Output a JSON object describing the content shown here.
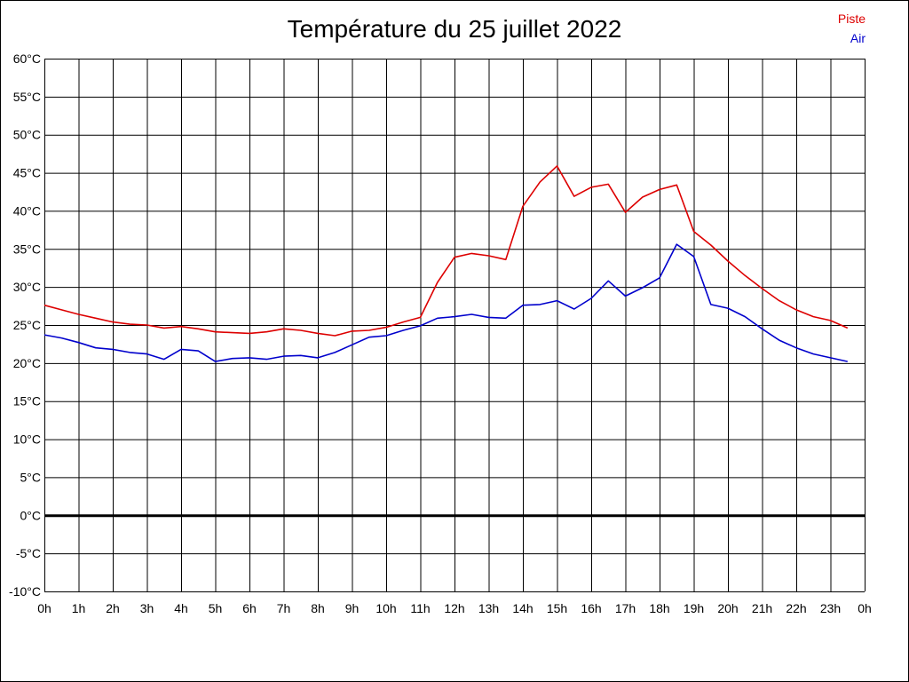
{
  "chart_data": {
    "type": "line",
    "title": "Température du 25 juillet 2022",
    "xlabel": "",
    "ylabel": "",
    "x_tick_labels": [
      "0h",
      "1h",
      "2h",
      "3h",
      "4h",
      "5h",
      "6h",
      "7h",
      "8h",
      "9h",
      "10h",
      "11h",
      "12h",
      "13h",
      "14h",
      "15h",
      "16h",
      "17h",
      "18h",
      "19h",
      "20h",
      "21h",
      "22h",
      "23h",
      "0h"
    ],
    "y_tick_labels": [
      "60°C",
      "55°C",
      "50°C",
      "45°C",
      "40°C",
      "35°C",
      "30°C",
      "25°C",
      "20°C",
      "15°C",
      "10°C",
      "5°C",
      "0°C",
      "-5°C",
      "-10°C"
    ],
    "xlim": [
      0,
      24
    ],
    "ylim": [
      -10,
      60
    ],
    "grid": true,
    "legend_position": "top-right",
    "x": [
      0,
      0.5,
      1,
      1.5,
      2,
      2.5,
      3,
      3.5,
      4,
      4.5,
      5,
      5.5,
      6,
      6.5,
      7,
      7.5,
      8,
      8.5,
      9,
      9.5,
      10,
      10.5,
      11,
      11.5,
      12,
      12.5,
      13,
      13.5,
      14,
      14.5,
      15,
      15.5,
      16,
      16.5,
      17,
      17.5,
      18,
      18.5,
      19,
      19.5,
      20,
      20.5,
      21,
      21.5,
      22,
      22.5,
      23,
      23.5
    ],
    "series": [
      {
        "name": "Piste",
        "color": "#dd0000",
        "values": [
          27.6,
          27.0,
          26.4,
          25.9,
          25.4,
          25.1,
          25.0,
          24.6,
          24.8,
          24.5,
          24.1,
          24.0,
          23.9,
          24.1,
          24.5,
          24.3,
          23.9,
          23.6,
          24.2,
          24.3,
          24.7,
          25.4,
          26.0,
          30.6,
          33.9,
          34.4,
          34.1,
          33.6,
          40.6,
          43.8,
          45.9,
          41.9,
          43.1,
          43.5,
          39.8,
          41.8,
          42.8,
          43.4,
          37.3,
          35.5,
          33.4,
          31.5,
          29.8,
          28.2,
          27.0,
          26.1,
          25.6,
          24.6
        ]
      },
      {
        "name": "Air",
        "color": "#0000cc",
        "values": [
          23.7,
          23.3,
          22.7,
          22.0,
          21.8,
          21.4,
          21.2,
          20.5,
          21.8,
          21.6,
          20.2,
          20.6,
          20.7,
          20.5,
          20.9,
          21.0,
          20.7,
          21.4,
          22.4,
          23.4,
          23.6,
          24.3,
          24.9,
          25.9,
          26.1,
          26.4,
          26.0,
          25.9,
          27.6,
          27.7,
          28.2,
          27.1,
          28.5,
          30.8,
          28.8,
          29.9,
          31.2,
          35.6,
          34.0,
          27.7,
          27.2,
          26.1,
          24.5,
          23.0,
          22.0,
          21.2,
          20.7,
          20.2
        ]
      }
    ],
    "baseline_value": 0
  }
}
